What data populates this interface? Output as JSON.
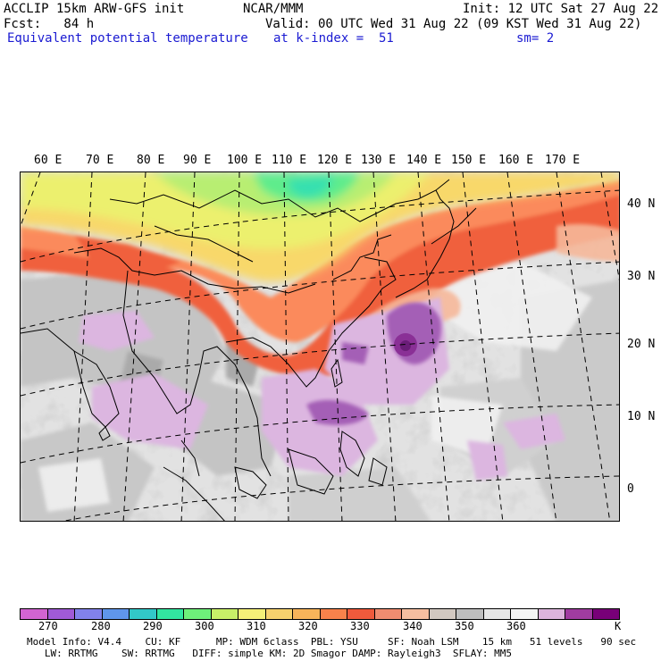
{
  "header": {
    "model_title": "ACCLIP 15km ARW-GFS init",
    "institution": "NCAR/MMM",
    "init_time": "Init: 12 UTC Sat 27 Aug 22",
    "forecast": "Fcst:   84 h",
    "valid_time": "Valid: 00 UTC Wed 31 Aug 22 (09 KST Wed 31 Aug 22)",
    "field": "Equivalent potential temperature",
    "k_index": "at k-index =  51",
    "smoothing": "sm= 2"
  },
  "map": {
    "lon_labels": [
      "60 E",
      "70 E",
      "80 E",
      "90 E",
      "100 E",
      "110 E",
      "120 E",
      "130 E",
      "140 E",
      "150 E",
      "160 E",
      "170 E"
    ],
    "lat_labels": [
      "40 N",
      "30 N",
      "20 N",
      "10 N",
      "0"
    ]
  },
  "colorbar": {
    "colors": [
      "#d264d2",
      "#a05ad7",
      "#8282eb",
      "#5f96eb",
      "#32c8c8",
      "#32e6a0",
      "#6ef07a",
      "#c8f068",
      "#f5f078",
      "#f7d26e",
      "#f8b45a",
      "#f8824b",
      "#f05a3c",
      "#f08c70",
      "#f5bea0",
      "#d2c8c0",
      "#bebebe",
      "#e6e6e6",
      "#f5f5f5",
      "#dcb4dc",
      "#a03ca0",
      "#780078"
    ],
    "labels": [
      "270",
      "280",
      "290",
      "300",
      "310",
      "320",
      "330",
      "340",
      "350",
      "360",
      "K"
    ]
  },
  "footer": {
    "line1": "Model Info: V4.4    CU: KF      MP: WDM 6class  PBL: YSU     SF: Noah LSM    15 km   51 levels   90 sec",
    "line2": "   LW: RRTMG    SW: RRTMG   DIFF: simple KM: 2D Smagor DAMP: Rayleigh3  SFLAY: MM5"
  }
}
